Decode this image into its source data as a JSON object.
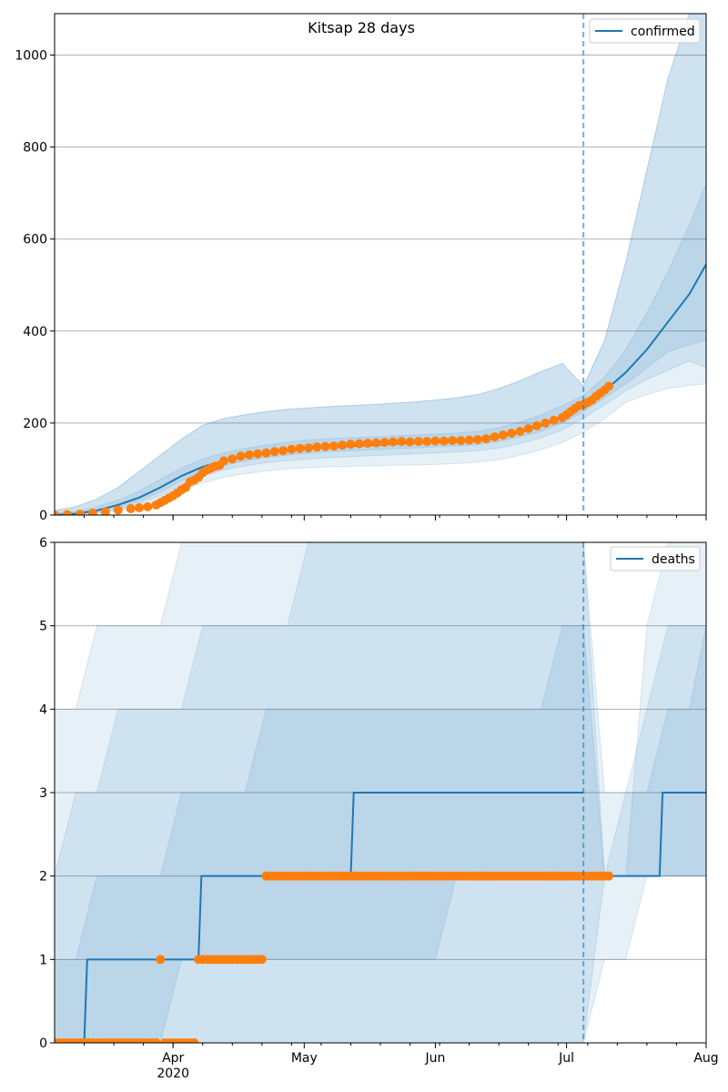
{
  "chart_data": [
    {
      "type": "line",
      "title": "Kitsap 28 days",
      "legend": {
        "label": "confirmed",
        "placement": "upper-right"
      },
      "ylim": [
        0,
        1090
      ],
      "yticks": [
        0,
        200,
        400,
        600,
        800,
        1000
      ],
      "xlim": [
        0,
        154
      ],
      "grid": "horizontal",
      "forecast_start_day": 125,
      "colors": {
        "line": "#1f77b4",
        "band": "#1f77b4",
        "obs": "#ff7f0e"
      },
      "model_days": [
        0,
        5,
        10,
        15,
        20,
        25,
        30,
        35,
        40,
        45,
        50,
        55,
        60,
        65,
        70,
        75,
        80,
        85,
        90,
        95,
        100,
        105,
        110,
        115,
        120,
        125,
        130,
        135,
        140,
        145,
        150,
        154
      ],
      "model_median": [
        0,
        3,
        10,
        22,
        38,
        60,
        85,
        105,
        118,
        128,
        135,
        140,
        145,
        148,
        150,
        152,
        155,
        157,
        158,
        160,
        163,
        170,
        180,
        195,
        215,
        240,
        270,
        310,
        360,
        420,
        480,
        545
      ],
      "bands": [
        {
          "lo": [
            0,
            0,
            3,
            8,
            18,
            32,
            52,
            70,
            82,
            90,
            96,
            100,
            103,
            105,
            106,
            107,
            108,
            109,
            110,
            112,
            115,
            120,
            130,
            142,
            158,
            180,
            210,
            245,
            262,
            275,
            282,
            285
          ],
          "hi": [
            10,
            18,
            35,
            60,
            95,
            130,
            165,
            195,
            210,
            218,
            225,
            230,
            233,
            236,
            238,
            240,
            243,
            246,
            250,
            255,
            262,
            275,
            292,
            312,
            330,
            280,
            380,
            550,
            750,
            950,
            1090,
            1090
          ]
        },
        {
          "lo": [
            0,
            1,
            5,
            12,
            25,
            42,
            65,
            85,
            98,
            107,
            114,
            118,
            122,
            125,
            127,
            129,
            131,
            133,
            135,
            137,
            140,
            146,
            155,
            168,
            185,
            210,
            240,
            270,
            295,
            315,
            335,
            320
          ]
        },
        {
          "lo": [
            0,
            2,
            7,
            16,
            30,
            50,
            75,
            95,
            108,
            118,
            125,
            130,
            135,
            138,
            140,
            142,
            144,
            146,
            148,
            150,
            153,
            160,
            170,
            182,
            200,
            225,
            255,
            285,
            320,
            355,
            370,
            380
          ],
          "hi": [
            4,
            8,
            18,
            32,
            52,
            78,
            102,
            122,
            135,
            145,
            152,
            158,
            163,
            166,
            168,
            170,
            172,
            174,
            176,
            178,
            182,
            190,
            202,
            218,
            238,
            260,
            300,
            360,
            440,
            530,
            630,
            720
          ]
        }
      ],
      "observed_days": [
        0,
        3,
        6,
        9,
        12,
        15,
        18,
        20,
        22,
        24,
        25,
        26,
        27,
        28,
        29,
        30,
        31,
        32,
        33,
        34,
        35,
        36,
        37,
        38,
        39,
        40,
        42,
        44,
        46,
        48,
        50,
        52,
        54,
        56,
        58,
        60,
        62,
        64,
        66,
        68,
        70,
        72,
        74,
        76,
        78,
        80,
        82,
        84,
        86,
        88,
        90,
        92,
        94,
        96,
        98,
        100,
        102,
        104,
        106,
        108,
        110,
        112,
        114,
        116,
        118,
        120,
        121,
        122,
        123,
        124,
        125,
        126,
        127,
        128,
        129,
        130,
        131
      ],
      "observed_values": [
        0,
        1,
        2,
        4,
        7,
        11,
        14,
        16,
        18,
        22,
        27,
        32,
        37,
        42,
        48,
        55,
        60,
        72,
        76,
        82,
        92,
        98,
        102,
        106,
        108,
        118,
        122,
        128,
        131,
        133,
        135,
        138,
        140,
        143,
        145,
        146,
        148,
        149,
        150,
        152,
        154,
        155,
        156,
        157,
        158,
        159,
        160,
        159,
        160,
        160,
        161,
        161,
        162,
        162,
        163,
        164,
        166,
        170,
        174,
        178,
        182,
        188,
        194,
        200,
        206,
        212,
        218,
        225,
        232,
        238,
        240,
        245,
        250,
        258,
        265,
        272,
        280
      ]
    },
    {
      "type": "step",
      "legend": {
        "label": "deaths",
        "placement": "upper-right"
      },
      "ylim": [
        0,
        6
      ],
      "yticks": [
        0,
        1,
        2,
        3,
        4,
        5,
        6
      ],
      "xlim": [
        0,
        154
      ],
      "grid": "horizontal",
      "forecast_start_day": 125,
      "xticks": {
        "major": [
          {
            "day": 28,
            "label": "Apr",
            "sub": "2020"
          },
          {
            "day": 59,
            "label": "May"
          },
          {
            "day": 90,
            "label": "Jun"
          },
          {
            "day": 121,
            "label": "Jul"
          },
          {
            "day": 154,
            "label": "Aug"
          }
        ]
      },
      "model_steps": [
        {
          "from": 0,
          "to": 7,
          "value": 0
        },
        {
          "from": 7,
          "to": 34,
          "value": 1
        },
        {
          "from": 34,
          "to": 70,
          "value": 2
        },
        {
          "from": 70,
          "to": 125,
          "value": 3
        },
        {
          "from": 132,
          "to": 143,
          "value": 2
        },
        {
          "from": 143,
          "to": 154,
          "value": 3
        }
      ],
      "bands": [
        {
          "lo": [
            0,
            0,
            0,
            0,
            0,
            0,
            0,
            0,
            0,
            0,
            0,
            0,
            0,
            0,
            0,
            0,
            0,
            0,
            0,
            0,
            0,
            0,
            0,
            0,
            0,
            0,
            1,
            1,
            2,
            2,
            2,
            2
          ],
          "hi": [
            4,
            4,
            5,
            5,
            5,
            5,
            6,
            6,
            6,
            6,
            6,
            6,
            6,
            6,
            6,
            6,
            6,
            6,
            6,
            6,
            6,
            6,
            6,
            6,
            6,
            6,
            2,
            2,
            5,
            6,
            6,
            6
          ]
        },
        {
          "lo": [
            0,
            0,
            0,
            0,
            0,
            0,
            0,
            0,
            0,
            0,
            0,
            0,
            0,
            0,
            0,
            0,
            0,
            0,
            0,
            0,
            0,
            0,
            0,
            0,
            0,
            0,
            2,
            2,
            2,
            2,
            2,
            2
          ],
          "hi": [
            2,
            3,
            3,
            4,
            4,
            4,
            4,
            5,
            5,
            5,
            5,
            5,
            6,
            6,
            6,
            6,
            6,
            6,
            6,
            6,
            6,
            6,
            6,
            6,
            6,
            6,
            3,
            3,
            4,
            5,
            5,
            5
          ]
        },
        {
          "lo": [
            0,
            0,
            0,
            0,
            0,
            0,
            1,
            1,
            1,
            1,
            1,
            1,
            1,
            1,
            1,
            1,
            1,
            1,
            1,
            2,
            2,
            2,
            2,
            2,
            2,
            2,
            2,
            2,
            2,
            2,
            2,
            2
          ],
          "hi": [
            1,
            1,
            2,
            2,
            2,
            2,
            3,
            3,
            3,
            3,
            4,
            4,
            4,
            4,
            4,
            4,
            4,
            4,
            4,
            4,
            4,
            4,
            4,
            4,
            5,
            5,
            2,
            3,
            3,
            4,
            4,
            5
          ]
        }
      ],
      "observed_days": [
        0,
        1,
        2,
        3,
        4,
        5,
        6,
        7,
        8,
        9,
        10,
        11,
        12,
        13,
        14,
        15,
        16,
        17,
        18,
        19,
        20,
        21,
        22,
        23,
        24,
        25,
        26,
        27,
        28,
        29,
        30,
        31,
        32,
        33,
        34,
        35,
        36,
        37,
        38,
        39,
        40,
        41,
        42,
        43,
        44,
        45,
        46,
        47,
        48,
        49,
        50,
        51,
        52,
        53,
        54,
        55,
        56,
        57,
        58,
        59,
        60,
        61,
        62,
        63,
        64,
        65,
        66,
        67,
        68,
        69,
        70,
        71,
        72,
        73,
        74,
        75,
        76,
        77,
        78,
        79,
        80,
        81,
        82,
        83,
        84,
        85,
        86,
        87,
        88,
        89,
        90,
        91,
        92,
        93,
        94,
        95,
        96,
        97,
        98,
        99,
        100,
        101,
        102,
        103,
        104,
        105,
        106,
        107,
        108,
        109,
        110,
        111,
        112,
        113,
        114,
        115,
        116,
        117,
        118,
        119,
        120,
        121,
        122,
        123,
        124,
        125,
        126,
        127,
        128,
        129,
        130,
        131
      ],
      "observed_values": [
        0,
        0,
        0,
        0,
        0,
        0,
        0,
        0,
        0,
        0,
        0,
        0,
        0,
        0,
        0,
        0,
        0,
        0,
        0,
        0,
        0,
        0,
        0,
        0,
        0,
        1,
        0,
        0,
        0,
        0,
        0,
        0,
        0,
        0,
        1,
        1,
        1,
        1,
        1,
        1,
        1,
        1,
        1,
        1,
        1,
        1,
        1,
        1,
        1,
        1,
        2,
        2,
        2,
        2,
        2,
        2,
        2,
        2,
        2,
        2,
        2,
        2,
        2,
        2,
        2,
        2,
        2,
        2,
        2,
        2,
        2,
        2,
        2,
        2,
        2,
        2,
        2,
        2,
        2,
        2,
        2,
        2,
        2,
        2,
        2,
        2,
        2,
        2,
        2,
        2,
        2,
        2,
        2,
        2,
        2,
        2,
        2,
        2,
        2,
        2,
        2,
        2,
        2,
        2,
        2,
        2,
        2,
        2,
        2,
        2,
        2,
        2,
        2,
        2,
        2,
        2,
        2,
        2,
        2,
        2,
        2,
        2,
        2,
        2,
        2,
        2,
        2,
        2,
        2,
        2,
        2,
        2
      ]
    }
  ]
}
